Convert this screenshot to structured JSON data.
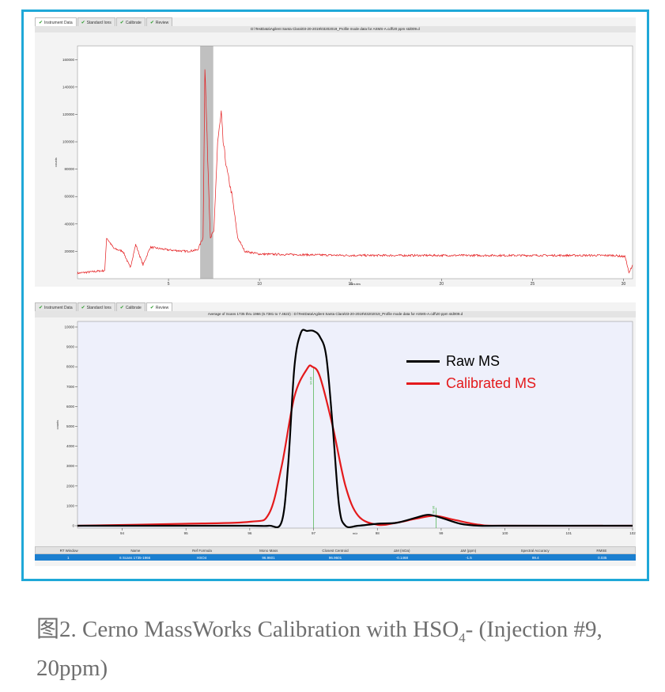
{
  "tabs": [
    "Instrument Data",
    "Standard Ions",
    "Calibrate",
    "Review"
  ],
  "top_panel": {
    "title": "D:\\TestData\\Agilent Santa Clara\\03-20-2019\\03202019_Profile mode data for ASMS-A.cdf\\20 ppm std009.d",
    "ylabel": "counts",
    "xlabel": "minutes",
    "y_ticks": [
      "160000",
      "140000",
      "120000",
      "100000",
      "80000",
      "60000",
      "40000",
      "20000"
    ],
    "x_ticks": [
      "5",
      "10",
      "15",
      "20",
      "25",
      "30"
    ]
  },
  "bottom_panel": {
    "title": "Average of Scans 1735 thru 1966 (6.7381 to 7.4622) : D:\\TestData\\Agilent Santa Clara\\03-20-2019\\03202019_Profile mode data for ASMS-A.cdf\\20 ppm std009.d",
    "ylabel": "counts",
    "xlabel": "m/z",
    "y_ticks": [
      "10000",
      "9000",
      "8000",
      "7000",
      "6000",
      "5000",
      "4000",
      "3000",
      "2000",
      "1000",
      "0"
    ],
    "x_ticks": [
      "94",
      "95",
      "96",
      "97",
      "98",
      "99",
      "100",
      "101",
      "102"
    ],
    "peak_labels": [
      "96.96",
      "98.96"
    ]
  },
  "legend": {
    "raw_label": "Raw MS",
    "calibrated_label": "Calibrated MS",
    "raw_color": "#000000",
    "calibrated_color": "#e41a1c"
  },
  "results": {
    "headers": [
      "RT Window",
      "Name",
      "Ref Formula",
      "Mono Mass",
      "Closest Centroid",
      "ΔM (mDa)",
      "ΔM (ppm)",
      "Spectral Accuracy",
      "RMSE"
    ],
    "row": [
      "1",
      "6  Scans 1735-1966",
      "HSO4",
      "96.9601",
      "96.9601",
      "-0.1468",
      "-1.5",
      "99.4",
      "0.035"
    ]
  },
  "caption": {
    "prefix": "图2. Cerno MassWorks Calibration with HSO",
    "subscript": "4",
    "suffix": "- (Injection #9, 20ppm)"
  },
  "chart_data": [
    {
      "type": "line",
      "title": "D:\\TestData\\Agilent Santa Clara\\03-20-2019\\03202019_Profile mode data for ASMS-A.cdf\\20 ppm std009.d",
      "xlabel": "minutes",
      "ylabel": "counts",
      "xlim": [
        0,
        30.5
      ],
      "ylim": [
        0,
        170000
      ],
      "highlight_range": [
        6.74,
        7.46
      ],
      "series": [
        {
          "x": [
            0,
            1.5,
            1.6,
            2.0,
            2.5,
            2.9,
            3.2,
            3.6,
            4.0,
            5.0,
            6.0,
            6.6,
            6.9,
            7.0,
            7.15,
            7.3,
            7.5,
            7.7,
            7.9,
            8.0,
            8.2,
            8.5,
            8.8,
            9.2,
            10,
            15,
            20,
            25,
            29.5,
            30.1,
            30.3,
            30.5
          ],
          "y": [
            4000,
            6000,
            30000,
            22000,
            20000,
            8000,
            25000,
            10000,
            23000,
            21000,
            20000,
            21000,
            30000,
            155000,
            90000,
            30000,
            35000,
            100000,
            120000,
            100000,
            80000,
            60000,
            30000,
            20000,
            18000,
            17000,
            17000,
            17000,
            17000,
            16000,
            4000,
            10000
          ]
        }
      ]
    },
    {
      "type": "line",
      "title": "Average of Scans 1735 thru 1966 (6.7381 to 7.4622)",
      "xlabel": "m/z",
      "ylabel": "counts",
      "xlim": [
        93.3,
        102
      ],
      "ylim": [
        0,
        10000
      ],
      "series": [
        {
          "name": "Raw MS",
          "x": [
            93.3,
            95.0,
            96.0,
            96.3,
            96.5,
            96.6,
            96.7,
            96.8,
            96.9,
            97.0,
            97.1,
            97.2,
            97.3,
            97.4,
            97.5,
            97.7,
            98.0,
            98.3,
            98.6,
            98.8,
            99.0,
            99.3,
            99.6,
            100.0,
            102.0
          ],
          "y": [
            0,
            0,
            0,
            0,
            200,
            3000,
            8000,
            9700,
            9800,
            9800,
            9500,
            8500,
            5000,
            1000,
            0,
            0,
            100,
            150,
            400,
            550,
            400,
            100,
            0,
            0,
            0
          ]
        },
        {
          "name": "Calibrated MS",
          "x": [
            93.3,
            95.0,
            96.0,
            96.3,
            96.5,
            96.7,
            96.9,
            96.98,
            97.1,
            97.3,
            97.5,
            97.7,
            98.0,
            98.3,
            98.6,
            98.9,
            99.2,
            99.6,
            100.0,
            102.0
          ],
          "y": [
            0,
            100,
            200,
            600,
            3000,
            6500,
            7900,
            8000,
            7500,
            5000,
            2000,
            500,
            50,
            150,
            350,
            500,
            300,
            50,
            0,
            0
          ]
        }
      ]
    }
  ]
}
